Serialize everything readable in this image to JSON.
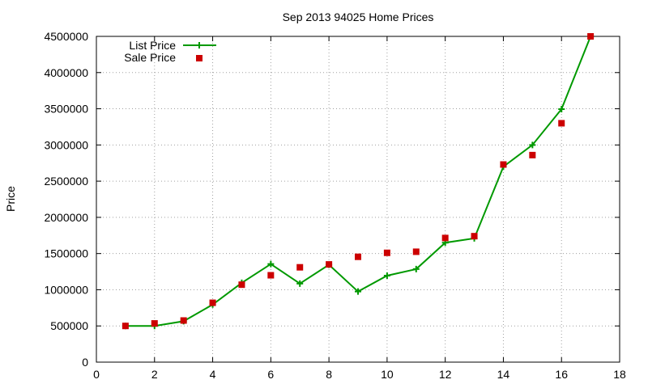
{
  "chart_data": {
    "type": "line",
    "title": "Sep 2013 94025 Home Prices",
    "xlabel": "",
    "ylabel": "Price",
    "xlim": [
      0,
      18
    ],
    "ylim": [
      0,
      4500000
    ],
    "x_ticks": [
      "0",
      "2",
      "4",
      "6",
      "8",
      "10",
      "12",
      "14",
      "16",
      "18"
    ],
    "y_ticks": [
      "0",
      "500000",
      "1000000",
      "1500000",
      "2000000",
      "2500000",
      "3000000",
      "3500000",
      "4000000",
      "4500000"
    ],
    "grid": true,
    "legend_position": "top-left",
    "series": [
      {
        "name": "List Price",
        "style": "line+cross",
        "color": "#009900",
        "x": [
          1,
          2,
          3,
          4,
          5,
          6,
          7,
          8,
          9,
          10,
          11,
          12,
          13,
          14,
          15,
          16,
          17
        ],
        "values": [
          500000,
          500000,
          565000,
          795000,
          1095000,
          1355000,
          1085000,
          1345000,
          975000,
          1195000,
          1285000,
          1650000,
          1710000,
          2700000,
          3000000,
          3495000,
          4500000
        ]
      },
      {
        "name": "Sale Price",
        "style": "square-points",
        "color": "#cc0000",
        "x": [
          1,
          2,
          3,
          4,
          5,
          6,
          7,
          8,
          9,
          10,
          11,
          12,
          13,
          14,
          15,
          16,
          17
        ],
        "values": [
          500000,
          535000,
          575000,
          820000,
          1070000,
          1200000,
          1310000,
          1350000,
          1455000,
          1510000,
          1525000,
          1715000,
          1740000,
          2730000,
          2860000,
          3300000,
          4500000
        ]
      }
    ]
  }
}
